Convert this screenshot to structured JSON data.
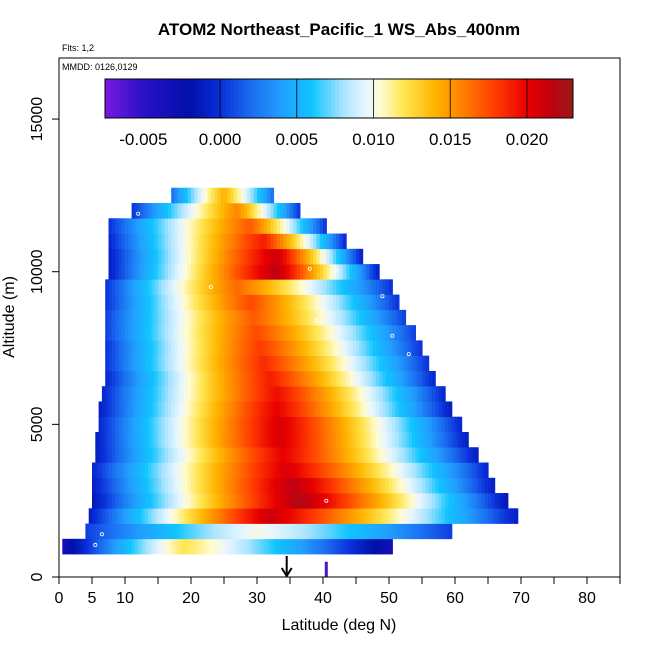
{
  "chart_data": {
    "type": "heatmap",
    "title": "ATOM2 Northeast_Pacific_1 WS_Abs_400nm",
    "flights_note": "Flts: 1,2",
    "dates_note": "MMDD: 0126,0129",
    "xlabel": "Latitude (deg N)",
    "ylabel": "Altitude (m)",
    "xlim": [
      0,
      85
    ],
    "ylim": [
      0,
      17000
    ],
    "xticks": [
      0,
      5,
      10,
      20,
      30,
      40,
      50,
      60,
      70,
      80
    ],
    "xticks_minor": [
      15,
      25,
      35,
      45,
      55,
      65,
      75,
      85
    ],
    "yticks": [
      0,
      5000,
      10000,
      15000
    ],
    "colorbar": {
      "range": [
        -0.0075,
        0.023
      ],
      "ticks": [
        -0.005,
        0.0,
        0.005,
        0.01,
        0.015,
        0.02
      ],
      "tick_labels": [
        "-0.005",
        "0.000",
        "0.005",
        "0.010",
        "0.015",
        "0.020"
      ],
      "stops": [
        {
          "v": -0.0075,
          "c": "#7a1ae0"
        },
        {
          "v": -0.005,
          "c": "#2a10c8"
        },
        {
          "v": -0.002,
          "c": "#0010a8"
        },
        {
          "v": 0.0,
          "c": "#0a2ed8"
        },
        {
          "v": 0.002,
          "c": "#1a6cf0"
        },
        {
          "v": 0.004,
          "c": "#22a0ff"
        },
        {
          "v": 0.006,
          "c": "#10c4ff"
        },
        {
          "v": 0.008,
          "c": "#a8e4ff"
        },
        {
          "v": 0.0095,
          "c": "#e8f6ff"
        },
        {
          "v": 0.0105,
          "c": "#fffbd0"
        },
        {
          "v": 0.012,
          "c": "#ffe550"
        },
        {
          "v": 0.014,
          "c": "#ffb400"
        },
        {
          "v": 0.016,
          "c": "#ff7a00"
        },
        {
          "v": 0.018,
          "c": "#ff3a00"
        },
        {
          "v": 0.02,
          "c": "#e80000"
        },
        {
          "v": 0.0215,
          "c": "#c00010"
        },
        {
          "v": 0.023,
          "c": "#9a1a1a"
        }
      ]
    },
    "rows": [
      {
        "alt": 1000,
        "lat_min": 0.5,
        "lat_max": 50.5,
        "peak_lat": 19,
        "peak_val": 0.012,
        "edge_val": -0.0035
      },
      {
        "alt": 1500,
        "lat_min": 4,
        "lat_max": 59.5,
        "peak_lat": 30,
        "peak_val": 0.01,
        "edge_val": 0.0005
      },
      {
        "alt": 2000,
        "lat_min": 4.5,
        "lat_max": 69.5,
        "peak_lat": 32,
        "peak_val": 0.021,
        "edge_val": -0.001
      },
      {
        "alt": 2500,
        "lat_min": 5,
        "lat_max": 68,
        "peak_lat": 36.5,
        "peak_val": 0.022,
        "edge_val": -0.0015
      },
      {
        "alt": 3000,
        "lat_min": 5,
        "lat_max": 66,
        "peak_lat": 35.5,
        "peak_val": 0.0215,
        "edge_val": -0.001
      },
      {
        "alt": 3500,
        "lat_min": 5,
        "lat_max": 65,
        "peak_lat": 34.5,
        "peak_val": 0.0205,
        "edge_val": -0.0005
      },
      {
        "alt": 4000,
        "lat_min": 5.5,
        "lat_max": 63.5,
        "peak_lat": 34,
        "peak_val": 0.02,
        "edge_val": -0.001
      },
      {
        "alt": 4500,
        "lat_min": 5.5,
        "lat_max": 62,
        "peak_lat": 33.5,
        "peak_val": 0.0205,
        "edge_val": -0.001
      },
      {
        "alt": 5000,
        "lat_min": 6,
        "lat_max": 61,
        "peak_lat": 33.5,
        "peak_val": 0.0205,
        "edge_val": -0.0005
      },
      {
        "alt": 5500,
        "lat_min": 6,
        "lat_max": 59.5,
        "peak_lat": 33,
        "peak_val": 0.02,
        "edge_val": -0.001
      },
      {
        "alt": 6000,
        "lat_min": 6.5,
        "lat_max": 58.5,
        "peak_lat": 33,
        "peak_val": 0.0195,
        "edge_val": -0.0005
      },
      {
        "alt": 6500,
        "lat_min": 7,
        "lat_max": 57,
        "peak_lat": 32,
        "peak_val": 0.019,
        "edge_val": -0.0005
      },
      {
        "alt": 7000,
        "lat_min": 7,
        "lat_max": 56,
        "peak_lat": 31,
        "peak_val": 0.0185,
        "edge_val": 0.0
      },
      {
        "alt": 7500,
        "lat_min": 7,
        "lat_max": 55,
        "peak_lat": 30.5,
        "peak_val": 0.018,
        "edge_val": 0.0
      },
      {
        "alt": 8000,
        "lat_min": 7,
        "lat_max": 54,
        "peak_lat": 30,
        "peak_val": 0.0175,
        "edge_val": 0.0005
      },
      {
        "alt": 8500,
        "lat_min": 7,
        "lat_max": 52.5,
        "peak_lat": 29.5,
        "peak_val": 0.017,
        "edge_val": 0.0005
      },
      {
        "alt": 9000,
        "lat_min": 7,
        "lat_max": 51.5,
        "peak_lat": 29,
        "peak_val": 0.0175,
        "edge_val": 0.0
      },
      {
        "alt": 9500,
        "lat_min": 7,
        "lat_max": 50.5,
        "peak_lat": 27,
        "peak_val": 0.0165,
        "edge_val": 0.0
      },
      {
        "alt": 10000,
        "lat_min": 7.5,
        "lat_max": 48.5,
        "peak_lat": 33,
        "peak_val": 0.0215,
        "edge_val": -0.001
      },
      {
        "alt": 10500,
        "lat_min": 7.5,
        "lat_max": 46,
        "peak_lat": 33,
        "peak_val": 0.021,
        "edge_val": -0.001
      },
      {
        "alt": 11000,
        "lat_min": 7.5,
        "lat_max": 43.5,
        "peak_lat": 31,
        "peak_val": 0.019,
        "edge_val": -0.0005
      },
      {
        "alt": 11500,
        "lat_min": 7.5,
        "lat_max": 40.5,
        "peak_lat": 29,
        "peak_val": 0.017,
        "edge_val": 0.0
      },
      {
        "alt": 12000,
        "lat_min": 11,
        "lat_max": 36.5,
        "peak_lat": 27,
        "peak_val": 0.0155,
        "edge_val": 0.0
      },
      {
        "alt": 12500,
        "lat_min": 17,
        "lat_max": 32.5,
        "peak_lat": 25,
        "peak_val": 0.014,
        "edge_val": 0.002
      }
    ],
    "arrow_marker_lat": 34.5,
    "spike_marker_lat": 40.5
  }
}
